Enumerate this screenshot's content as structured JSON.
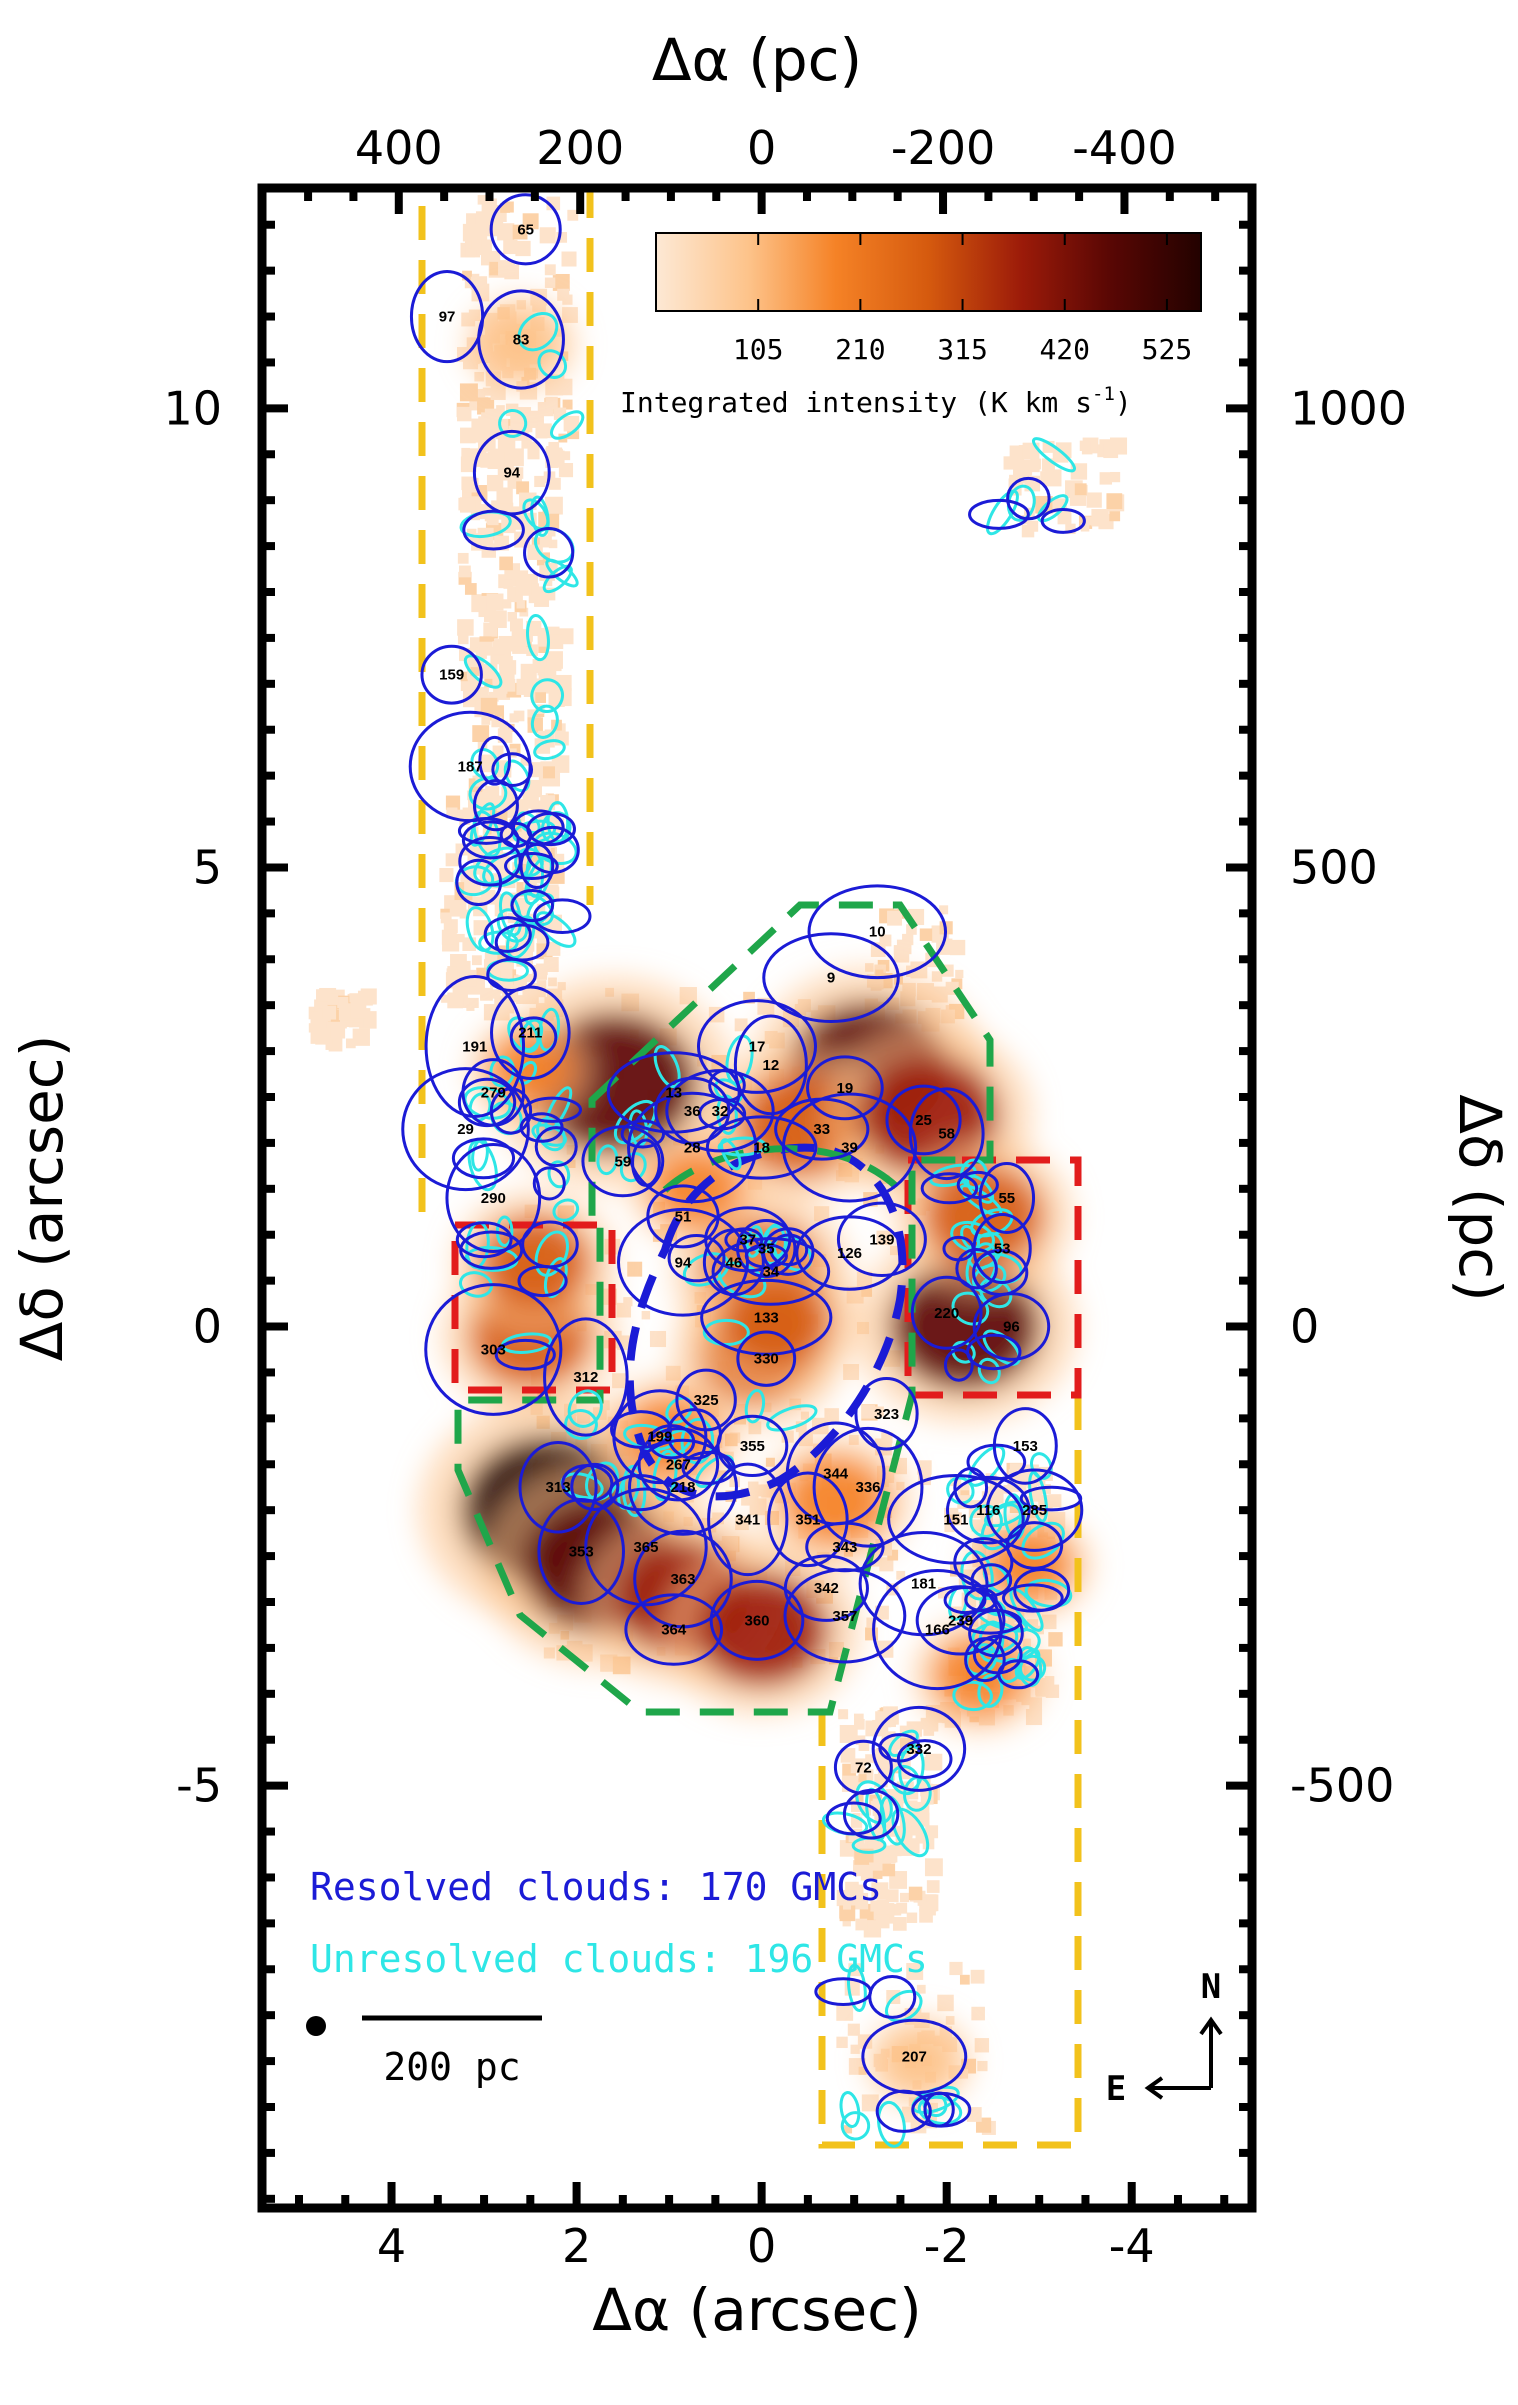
{
  "chart_data": {
    "type": "map",
    "xlabel_bottom": "Δα (arcsec)",
    "xlabel_top": "Δα (pc)",
    "ylabel_left": "Δδ (arcsec)",
    "ylabel_right": "Δδ (pc)",
    "xlim_arcsec": [
      5.4,
      -5.3
    ],
    "ylim_arcsec": [
      -9.6,
      12.4
    ],
    "bottom_ticks": [
      "4",
      "2",
      "0",
      "-2",
      "-4"
    ],
    "left_ticks": [
      "10",
      "5",
      "0",
      "-5"
    ],
    "top_ticks": [
      "400",
      "200",
      "0",
      "-200",
      "-400"
    ],
    "right_ticks": [
      "1000",
      "500",
      "0",
      "-500"
    ],
    "colorbar": {
      "ticks": [
        "105",
        "210",
        "315",
        "420",
        "525"
      ],
      "label": "Integrated intensity (K km s",
      "label_sup": "-1",
      "label_end": ")",
      "colors": [
        "#fde9d5",
        "#fdc38a",
        "#f58226",
        "#d55a0e",
        "#9c1b09",
        "#5a0704",
        "#230200"
      ],
      "range": [
        0,
        560
      ]
    },
    "legend": {
      "resolved": "Resolved clouds: 170 GMCs",
      "unresolved": "Unresolved clouds: 196 GMCs",
      "resolved_color": "#1b1bd6",
      "unresolved_color": "#2ee6e6"
    },
    "scalebar_label": "200 pc",
    "compass": {
      "north": "N",
      "east": "E"
    },
    "emission_peaks": [
      {
        "ra": 1.6,
        "dec": 2.65,
        "intensity": 480
      },
      {
        "ra": -1.15,
        "dec": 2.8,
        "intensity": 450
      },
      {
        "ra": -0.4,
        "dec": 2.2,
        "intensity": 300
      },
      {
        "ra": -1.8,
        "dec": 2.3,
        "intensity": 380
      },
      {
        "ra": 0.0,
        "dec": 0.6,
        "intensity": 300
      },
      {
        "ra": 0.05,
        "dec": -0.3,
        "intensity": 280
      },
      {
        "ra": -0.15,
        "dec": 0.05,
        "intensity": 260
      },
      {
        "ra": 0.7,
        "dec": 1.5,
        "intensity": 180
      },
      {
        "ra": -2.2,
        "dec": 0.0,
        "intensity": 420
      },
      {
        "ra": -2.4,
        "dec": 1.2,
        "intensity": 300
      },
      {
        "ra": 2.5,
        "dec": -0.1,
        "intensity": 300
      },
      {
        "ra": 2.45,
        "dec": 0.7,
        "intensity": 260
      },
      {
        "ra": 2.3,
        "dec": -2.0,
        "intensity": 520
      },
      {
        "ra": 1.75,
        "dec": -2.6,
        "intensity": 450
      },
      {
        "ra": 0.85,
        "dec": -2.95,
        "intensity": 360
      },
      {
        "ra": 0.0,
        "dec": -3.3,
        "intensity": 350
      },
      {
        "ra": -0.8,
        "dec": -1.9,
        "intensity": 230
      },
      {
        "ra": 1.0,
        "dec": -1.2,
        "intensity": 200
      },
      {
        "ra": -2.35,
        "dec": -3.8,
        "intensity": 180
      },
      {
        "ra": -2.9,
        "dec": -2.6,
        "intensity": 160
      },
      {
        "ra": 2.6,
        "dec": 10.7,
        "intensity": 120
      },
      {
        "ra": 2.5,
        "dec": 2.8,
        "intensity": 150
      },
      {
        "ra": -1.7,
        "dec": -8.0,
        "intensity": 110
      }
    ],
    "labelled_resolved_clouds": [
      {
        "id": "65",
        "ra": 2.55,
        "dec": 11.95
      },
      {
        "id": "83",
        "ra": 2.6,
        "dec": 10.75
      },
      {
        "id": "97",
        "ra": 3.4,
        "dec": 11.0
      },
      {
        "id": "94",
        "ra": 2.7,
        "dec": 9.3
      },
      {
        "id": "159",
        "ra": 3.35,
        "dec": 7.1
      },
      {
        "id": "187",
        "ra": 3.15,
        "dec": 6.1
      },
      {
        "id": "10",
        "ra": -1.25,
        "dec": 4.3
      },
      {
        "id": "9",
        "ra": -0.75,
        "dec": 3.8
      },
      {
        "id": "17",
        "ra": 0.05,
        "dec": 3.05
      },
      {
        "id": "12",
        "ra": -0.1,
        "dec": 2.85
      },
      {
        "id": "19",
        "ra": -0.9,
        "dec": 2.6
      },
      {
        "id": "13",
        "ra": 0.95,
        "dec": 2.55
      },
      {
        "id": "36",
        "ra": 0.75,
        "dec": 2.35
      },
      {
        "id": "32",
        "ra": 0.45,
        "dec": 2.35
      },
      {
        "id": "28",
        "ra": 0.75,
        "dec": 1.95
      },
      {
        "id": "18",
        "ra": 0.0,
        "dec": 1.95
      },
      {
        "id": "33",
        "ra": -0.65,
        "dec": 2.15
      },
      {
        "id": "39",
        "ra": -0.95,
        "dec": 1.95
      },
      {
        "id": "25",
        "ra": -1.75,
        "dec": 2.25
      },
      {
        "id": "58",
        "ra": -2.0,
        "dec": 2.1
      },
      {
        "id": "59",
        "ra": 1.5,
        "dec": 1.8
      },
      {
        "id": "51",
        "ra": 0.85,
        "dec": 1.2
      },
      {
        "id": "55",
        "ra": -2.65,
        "dec": 1.4
      },
      {
        "id": "53",
        "ra": -2.6,
        "dec": 0.85
      },
      {
        "id": "139",
        "ra": -1.3,
        "dec": 0.95
      },
      {
        "id": "126",
        "ra": -0.95,
        "dec": 0.8
      },
      {
        "id": "37",
        "ra": 0.15,
        "dec": 0.95
      },
      {
        "id": "35",
        "ra": -0.05,
        "dec": 0.85
      },
      {
        "id": "46",
        "ra": 0.3,
        "dec": 0.7
      },
      {
        "id": "34",
        "ra": -0.1,
        "dec": 0.6
      },
      {
        "id": "94",
        "ra": 0.85,
        "dec": 0.7
      },
      {
        "id": "133",
        "ra": -0.05,
        "dec": 0.1
      },
      {
        "id": "330",
        "ra": -0.05,
        "dec": -0.35
      },
      {
        "id": "220",
        "ra": -2.0,
        "dec": 0.15
      },
      {
        "id": "96",
        "ra": -2.7,
        "dec": 0.0
      },
      {
        "id": "191",
        "ra": 3.1,
        "dec": 3.05
      },
      {
        "id": "211",
        "ra": 2.5,
        "dec": 3.2
      },
      {
        "id": "279",
        "ra": 2.9,
        "dec": 2.55
      },
      {
        "id": "29",
        "ra": 3.2,
        "dec": 2.15
      },
      {
        "id": "290",
        "ra": 2.9,
        "dec": 1.4
      },
      {
        "id": "303",
        "ra": 2.9,
        "dec": -0.25
      },
      {
        "id": "325",
        "ra": 0.6,
        "dec": -0.8
      },
      {
        "id": "199",
        "ra": 1.1,
        "dec": -1.2
      },
      {
        "id": "267",
        "ra": 0.9,
        "dec": -1.5
      },
      {
        "id": "218",
        "ra": 0.85,
        "dec": -1.75
      },
      {
        "id": "355",
        "ra": 0.1,
        "dec": -1.3
      },
      {
        "id": "344",
        "ra": -0.8,
        "dec": -1.6
      },
      {
        "id": "336",
        "ra": -1.15,
        "dec": -1.75
      },
      {
        "id": "341",
        "ra": 0.15,
        "dec": -2.1
      },
      {
        "id": "351",
        "ra": -0.5,
        "dec": -2.1
      },
      {
        "id": "343",
        "ra": -0.9,
        "dec": -2.4
      },
      {
        "id": "342",
        "ra": -0.7,
        "dec": -2.85
      },
      {
        "id": "357",
        "ra": -0.9,
        "dec": -3.15
      },
      {
        "id": "353",
        "ra": 1.95,
        "dec": -2.45
      },
      {
        "id": "365",
        "ra": 1.25,
        "dec": -2.4
      },
      {
        "id": "363",
        "ra": 0.85,
        "dec": -2.75
      },
      {
        "id": "364",
        "ra": 0.95,
        "dec": -3.3
      },
      {
        "id": "360",
        "ra": 0.05,
        "dec": -3.2
      },
      {
        "id": "313",
        "ra": 2.2,
        "dec": -1.75
      },
      {
        "id": "181",
        "ra": -1.75,
        "dec": -2.8
      },
      {
        "id": "151",
        "ra": -2.1,
        "dec": -2.1
      },
      {
        "id": "116",
        "ra": -2.45,
        "dec": -2.0
      },
      {
        "id": "153",
        "ra": -2.85,
        "dec": -1.3
      },
      {
        "id": "285",
        "ra": -2.95,
        "dec": -2.0
      },
      {
        "id": "239",
        "ra": -2.15,
        "dec": -3.2
      },
      {
        "id": "166",
        "ra": -1.9,
        "dec": -3.3
      },
      {
        "id": "332",
        "ra": -1.7,
        "dec": -4.6
      },
      {
        "id": "72",
        "ra": -1.1,
        "dec": -4.8
      },
      {
        "id": "207",
        "ra": -1.65,
        "dec": -7.95
      },
      {
        "id": "323",
        "ra": -1.35,
        "dec": -0.95
      },
      {
        "id": "312",
        "ra": 1.9,
        "dec": -0.55
      }
    ]
  }
}
